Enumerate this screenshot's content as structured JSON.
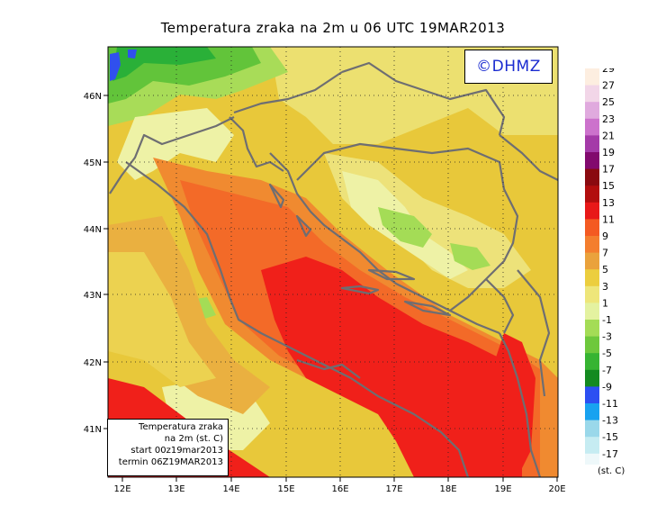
{
  "title": "Temperatura zraka na 2m u 06 UTC 19MAR2013",
  "credit": "©DHMZ",
  "map_legend": {
    "line1": "Temperatura zraka",
    "line2": "na 2m (st. C)",
    "line3": "start 00z19mar2013",
    "line4": "termin 06Z19MAR2013"
  },
  "lat_labels": [
    "46N",
    "45N",
    "44N",
    "43N",
    "42N",
    "41N"
  ],
  "lon_labels": [
    "12E",
    "13E",
    "14E",
    "15E",
    "16E",
    "17E",
    "18E",
    "19E",
    "20E"
  ],
  "colorbar": {
    "unit": "(st. C)",
    "levels": [
      "29",
      "27",
      "25",
      "23",
      "21",
      "19",
      "17",
      "15",
      "13",
      "11",
      "9",
      "7",
      "5",
      "3",
      "1",
      "-1",
      "-3",
      "-5",
      "-7",
      "-9",
      "-11",
      "-13",
      "-15",
      "-17"
    ],
    "colors": [
      "#fdeee0",
      "#f2d6e8",
      "#e0aade",
      "#cc72cc",
      "#a43aa8",
      "#820a6e",
      "#8a0a10",
      "#b20e0e",
      "#e81818",
      "#f45a22",
      "#f47e2e",
      "#eaa23c",
      "#ecce3e",
      "#eee67a",
      "#e4f2a0",
      "#a4dc56",
      "#6ec83c",
      "#36b432",
      "#148a20",
      "#2c4ff2",
      "#18a2f0",
      "#9ad8ea",
      "#c6ecf2",
      "#eef8fa"
    ]
  },
  "colors": {
    "sea_warm": "#f0201a",
    "coastline": "#6e6e72"
  }
}
